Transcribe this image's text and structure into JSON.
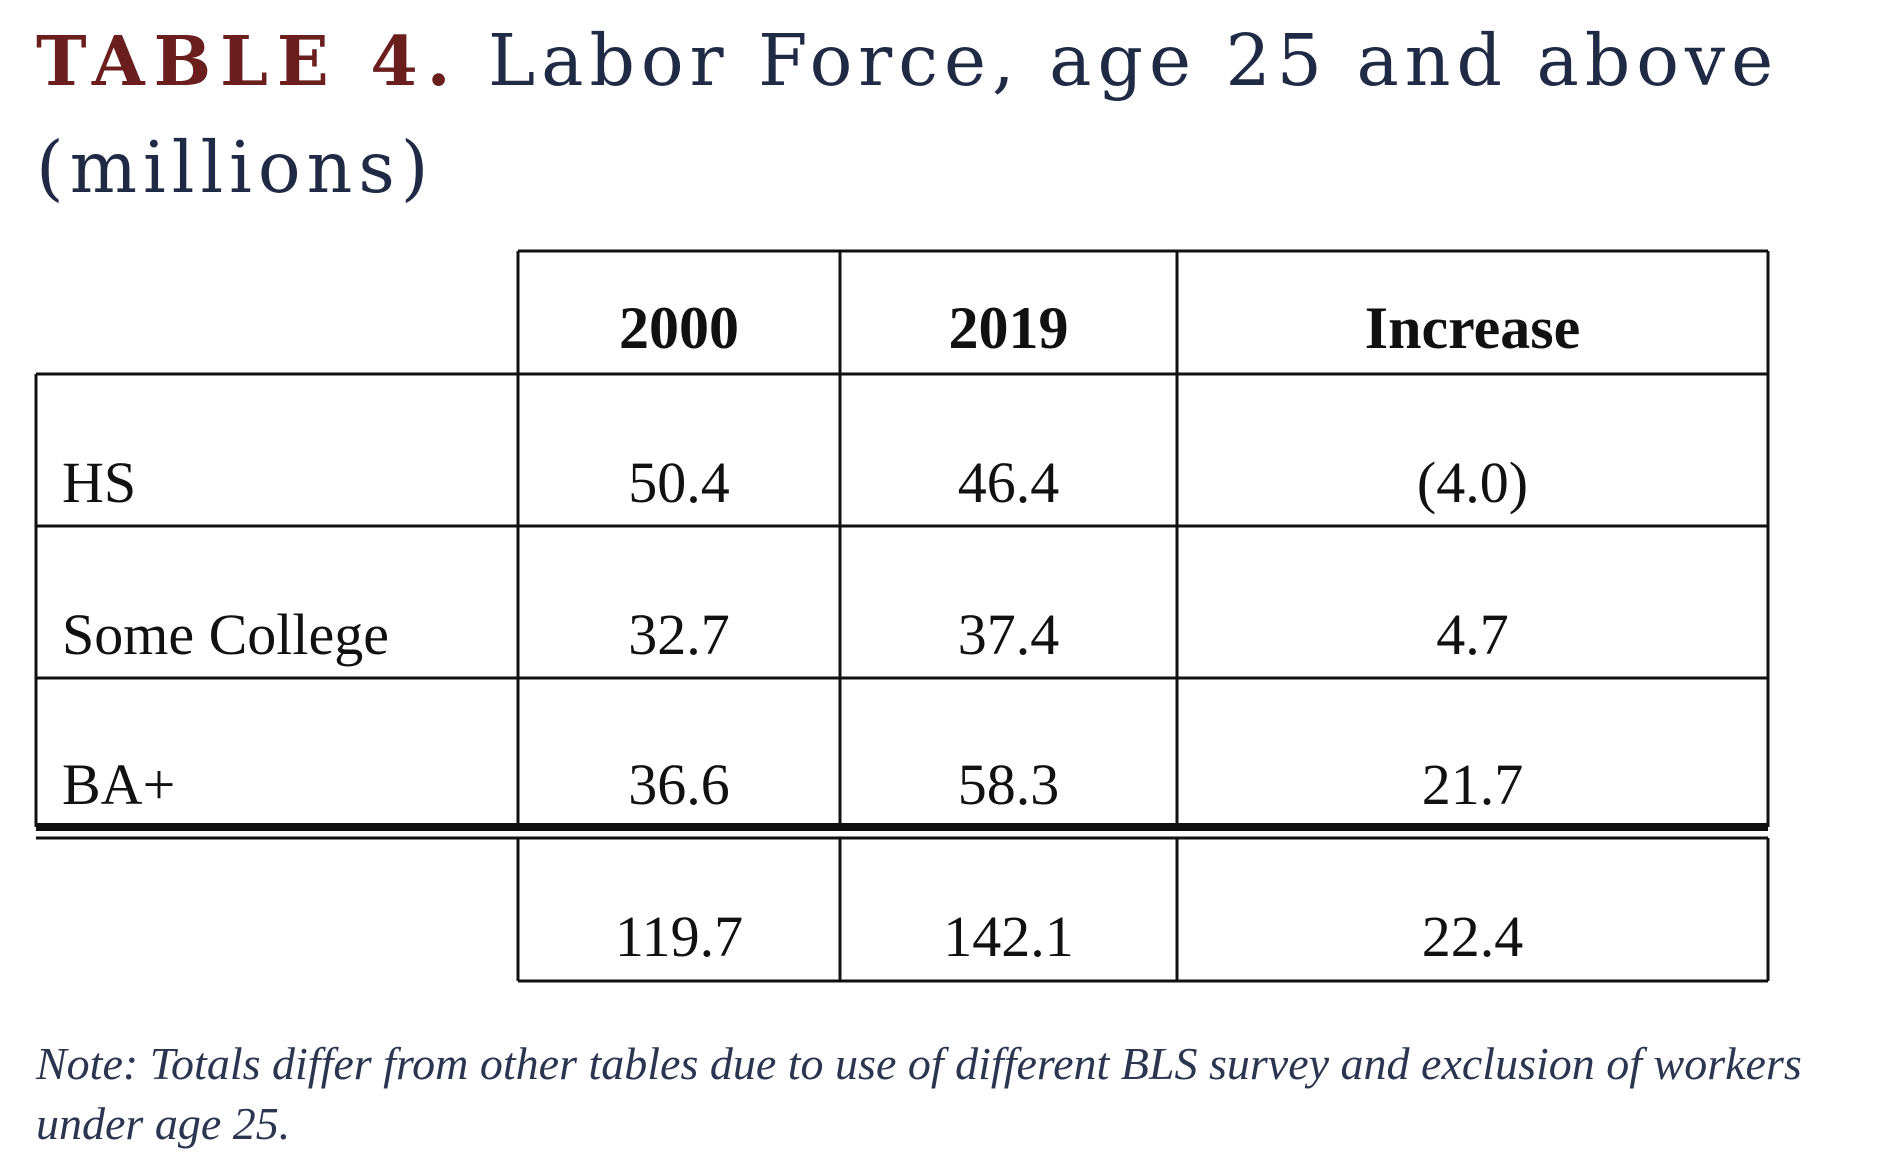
{
  "title": {
    "label": "TABLE 4.",
    "text": "Labor Force, age 25 and above (millions)"
  },
  "table": {
    "columns": [
      "2000",
      "2019",
      "Increase"
    ],
    "rows": [
      {
        "label": "HS",
        "values": [
          "50.4",
          "46.4",
          "(4.0)"
        ]
      },
      {
        "label": "Some College",
        "values": [
          "32.7",
          "37.4",
          "4.7"
        ]
      },
      {
        "label": "BA+",
        "values": [
          "36.6",
          "58.3",
          "21.7"
        ]
      }
    ],
    "total": {
      "label": "",
      "values": [
        "119.7",
        "142.1",
        "22.4"
      ]
    }
  },
  "note": "Note: Totals differ from other tables due to use of different BLS survey and exclusion of workers under age 25."
}
